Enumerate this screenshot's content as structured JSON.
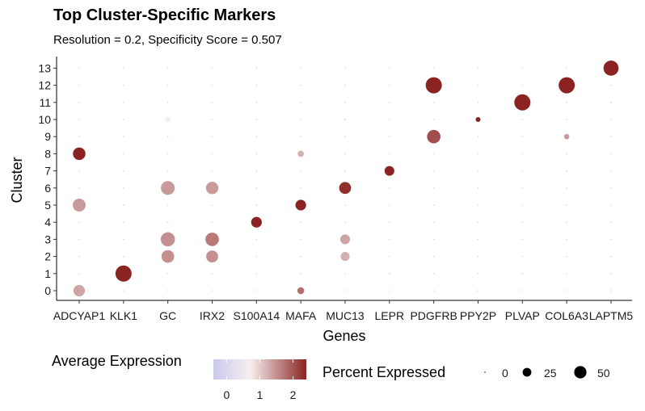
{
  "chart_data": {
    "type": "dot",
    "title": "Top Cluster-Specific Markers",
    "subtitle": "Resolution = 0.2, Specificity Score = 0.507",
    "xlabel": "Genes",
    "ylabel": "Cluster",
    "genes": [
      "ADCYAP1",
      "KLK1",
      "GC",
      "IRX2",
      "S100A14",
      "MAFA",
      "MUC13",
      "LEPR",
      "PDGFRB",
      "PPY2P",
      "PLVAP",
      "COL6A3",
      "LAPTM5"
    ],
    "clusters": [
      "0",
      "1",
      "2",
      "3",
      "4",
      "5",
      "6",
      "7",
      "8",
      "9",
      "10",
      "11",
      "12",
      "13"
    ],
    "points": [
      {
        "gene": "ADCYAP1",
        "cluster": "0",
        "pct": 28,
        "avg": 1.2
      },
      {
        "gene": "ADCYAP1",
        "cluster": "5",
        "pct": 35,
        "avg": 1.3
      },
      {
        "gene": "ADCYAP1",
        "cluster": "8",
        "pct": 33,
        "avg": 2.4
      },
      {
        "gene": "KLK1",
        "cluster": "1",
        "pct": 55,
        "avg": 2.8
      },
      {
        "gene": "GC",
        "cluster": "2",
        "pct": 34,
        "avg": 1.4
      },
      {
        "gene": "GC",
        "cluster": "3",
        "pct": 42,
        "avg": 1.4
      },
      {
        "gene": "GC",
        "cluster": "6",
        "pct": 40,
        "avg": 1.3
      },
      {
        "gene": "GC",
        "cluster": "10",
        "pct": 5,
        "avg": 0.4
      },
      {
        "gene": "IRX2",
        "cluster": "2",
        "pct": 30,
        "avg": 1.4
      },
      {
        "gene": "IRX2",
        "cluster": "3",
        "pct": 38,
        "avg": 1.6
      },
      {
        "gene": "IRX2",
        "cluster": "6",
        "pct": 32,
        "avg": 1.3
      },
      {
        "gene": "S100A14",
        "cluster": "4",
        "pct": 24,
        "avg": 2.6
      },
      {
        "gene": "MAFA",
        "cluster": "0",
        "pct": 10,
        "avg": 1.7
      },
      {
        "gene": "MAFA",
        "cluster": "5",
        "pct": 24,
        "avg": 2.4
      },
      {
        "gene": "MAFA",
        "cluster": "8",
        "pct": 8,
        "avg": 1.1
      },
      {
        "gene": "MUC13",
        "cluster": "2",
        "pct": 17,
        "avg": 1.1
      },
      {
        "gene": "MUC13",
        "cluster": "3",
        "pct": 20,
        "avg": 1.2
      },
      {
        "gene": "MUC13",
        "cluster": "6",
        "pct": 30,
        "avg": 2.3
      },
      {
        "gene": "MUC13",
        "cluster": "7",
        "pct": 1,
        "avg": 0.3
      },
      {
        "gene": "MUC13",
        "cluster": "10",
        "pct": 1,
        "avg": 0.2
      },
      {
        "gene": "LEPR",
        "cluster": "7",
        "pct": 20,
        "avg": 2.7
      },
      {
        "gene": "PDGFRB",
        "cluster": "9",
        "pct": 38,
        "avg": 2.0
      },
      {
        "gene": "PDGFRB",
        "cluster": "12",
        "pct": 55,
        "avg": 2.6
      },
      {
        "gene": "PPY2P",
        "cluster": "10",
        "pct": 5,
        "avg": 2.9
      },
      {
        "gene": "PLVAP",
        "cluster": "11",
        "pct": 55,
        "avg": 2.8
      },
      {
        "gene": "COL6A3",
        "cluster": "9",
        "pct": 6,
        "avg": 1.3
      },
      {
        "gene": "COL6A3",
        "cluster": "12",
        "pct": 55,
        "avg": 2.6
      },
      {
        "gene": "LAPTM5",
        "cluster": "11",
        "pct": 1,
        "avg": 0.2
      },
      {
        "gene": "LAPTM5",
        "cluster": "13",
        "pct": 48,
        "avg": 2.8
      }
    ],
    "color_legend": {
      "title": "Average Expression",
      "ticks": [
        "0",
        "1",
        "2"
      ],
      "range": [
        -0.4,
        2.4
      ],
      "low": "#c9c9ee",
      "mid": "#f7f0f0",
      "high": "#8b2323"
    },
    "size_legend": {
      "title": "Percent Expressed",
      "ticks": [
        "0",
        "25",
        "50"
      ],
      "values": [
        0,
        25,
        50
      ]
    },
    "grid": false,
    "legend_position": "bottom"
  }
}
